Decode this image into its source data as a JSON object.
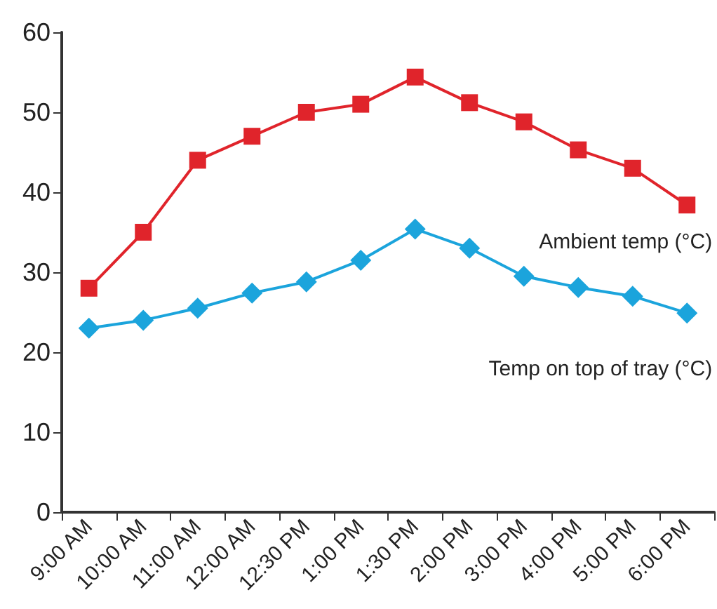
{
  "chart_data": {
    "type": "line",
    "categories": [
      "9:00 AM",
      "10:00 AM",
      "11:00 AM",
      "12:00 AM",
      "12:30 PM",
      "1:00 PM",
      "1:30 PM",
      "2:00 PM",
      "3:00 PM",
      "4:00 PM",
      "5:00 PM",
      "6:00 PM"
    ],
    "series": [
      {
        "name": "Ambient temp (°C)",
        "color": "#e0242b",
        "marker": "square",
        "values": [
          28,
          35,
          44,
          47,
          50,
          51,
          54.4,
          51.2,
          48.8,
          45.3,
          43,
          38.4
        ]
      },
      {
        "name": "Temp on top of tray (°C)",
        "color": "#1ba4dc",
        "marker": "diamond",
        "values": [
          23,
          24,
          25.5,
          27.4,
          28.8,
          31.5,
          35.4,
          33,
          29.5,
          28.1,
          27,
          24.9
        ]
      }
    ],
    "ylim": [
      0,
      60
    ],
    "yticks": [
      0,
      10,
      20,
      30,
      40,
      50,
      60
    ],
    "grid": false,
    "legend": false
  }
}
